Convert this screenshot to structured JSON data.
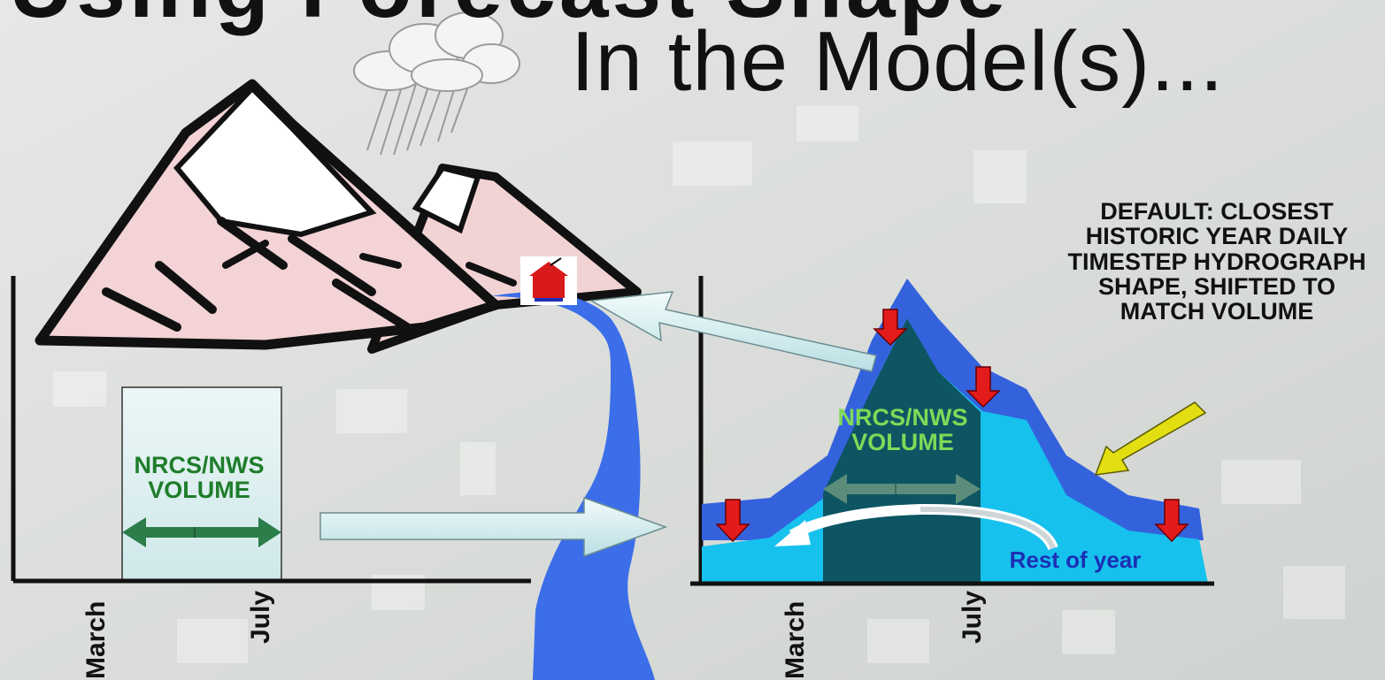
{
  "title": "In the Model(s)...",
  "title_cut_top": "Using Forecast Shape",
  "left_chart": {
    "volume_label": "NRCS/NWS VOLUME",
    "x_ticks": [
      "March",
      "July"
    ]
  },
  "right_chart": {
    "volume_label": "NRCS/NWS VOLUME",
    "rest_label": "Rest of year",
    "x_ticks": [
      "March",
      "July"
    ]
  },
  "note_text": "DEFAULT: CLOSEST HISTORIC YEAR DAILY TIMESTEP HYDROGRAPH SHAPE, SHIFTED TO MATCH VOLUME",
  "colors": {
    "river": "#3b6ee8",
    "hydrograph_dark": "#0d5563",
    "hydrograph_light": "#16c1ee",
    "hydrograph_outer": "#3462dd",
    "arrow_red": "#e31b1b",
    "arrow_yellow": "#e2de12",
    "volume_green": "#1e7d2a"
  }
}
